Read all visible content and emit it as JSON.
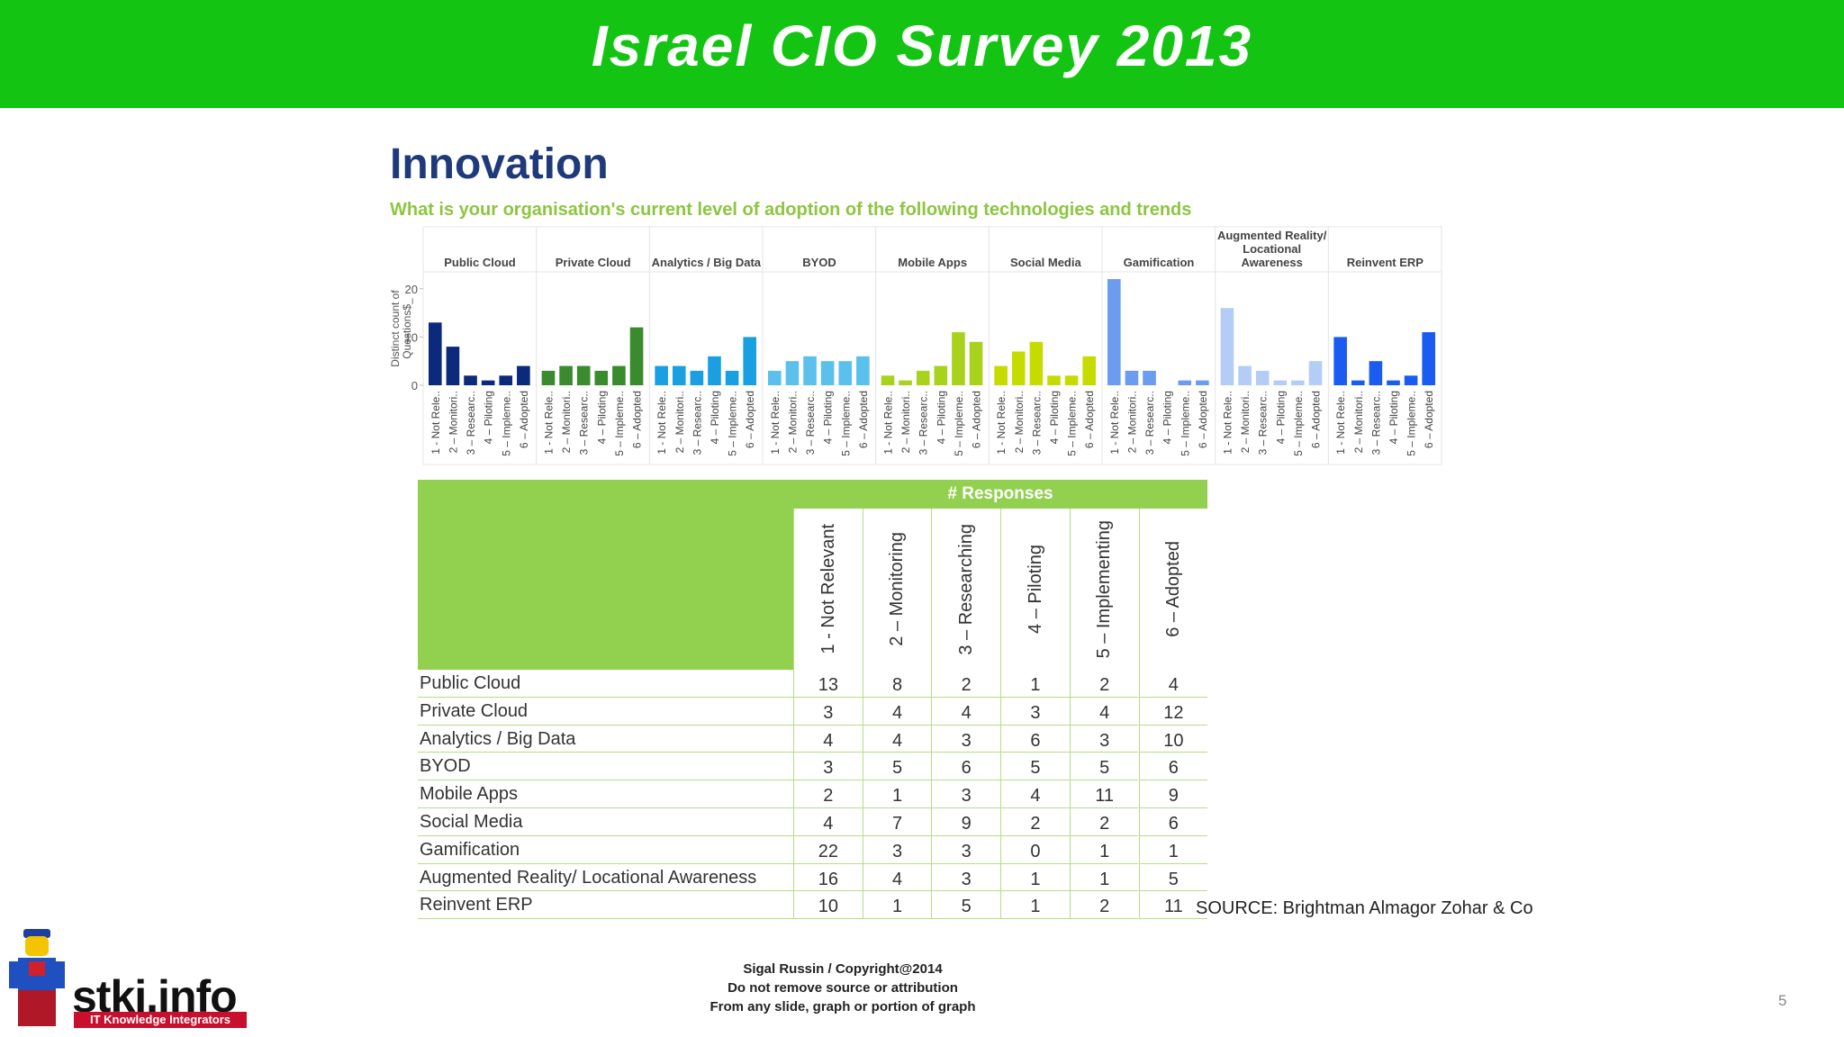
{
  "header": {
    "title": "Israel CIO Survey 2013"
  },
  "chart_data": {
    "type": "bar",
    "title": "Innovation",
    "subtitle": "What is your organisation's current level of adoption of the following technologies and trends",
    "ylabel": [
      "Distinct count of",
      "Questions$_"
    ],
    "categories": [
      "Public Cloud",
      "Private Cloud",
      "Analytics / Big Data",
      "BYOD",
      "Mobile Apps",
      "Social Media",
      "Gamification",
      "Augmented Reality/ Locational Awareness",
      "Reinvent ERP"
    ],
    "group_colors": [
      "#0b2a7c",
      "#3a8a2e",
      "#1aa0e0",
      "#5cc0ec",
      "#a8d21c",
      "#c6dc00",
      "#6b9cf0",
      "#b4cdf6",
      "#1a5cf0"
    ],
    "bar_labels": [
      "1 - Not Rele..",
      "2 – Monitori..",
      "3 – Researc..",
      "4 – Piloting",
      "5 – Impleme..",
      "6 – Adopted"
    ],
    "series": [
      {
        "name": "1 - Not Relevant",
        "values": [
          13,
          3,
          4,
          3,
          2,
          4,
          22,
          16,
          10
        ]
      },
      {
        "name": "2 – Monitoring",
        "values": [
          8,
          4,
          4,
          5,
          1,
          7,
          3,
          4,
          1
        ]
      },
      {
        "name": "3 – Researching",
        "values": [
          2,
          4,
          3,
          6,
          3,
          9,
          3,
          3,
          5
        ]
      },
      {
        "name": "4 – Piloting",
        "values": [
          1,
          3,
          6,
          5,
          4,
          2,
          0,
          1,
          1
        ]
      },
      {
        "name": "5 – Implementing",
        "values": [
          2,
          4,
          3,
          5,
          11,
          2,
          1,
          1,
          2
        ]
      },
      {
        "name": "6 – Adopted",
        "values": [
          4,
          12,
          10,
          6,
          9,
          6,
          1,
          5,
          11
        ]
      }
    ],
    "ylim": [
      0,
      23.5
    ],
    "yticks": [
      0,
      10,
      20
    ]
  },
  "table": {
    "header": "# Responses"
  },
  "source": "SOURCE: Brightman Almagor Zohar & Co",
  "footer": [
    "Sigal Russin  /  Copyright@2014",
    "Do not remove source or attribution",
    "From any slide, graph or portion of graph"
  ],
  "page_number": "5",
  "logo": {
    "name": "stki.info",
    "tagline": "IT Knowledge Integrators"
  }
}
